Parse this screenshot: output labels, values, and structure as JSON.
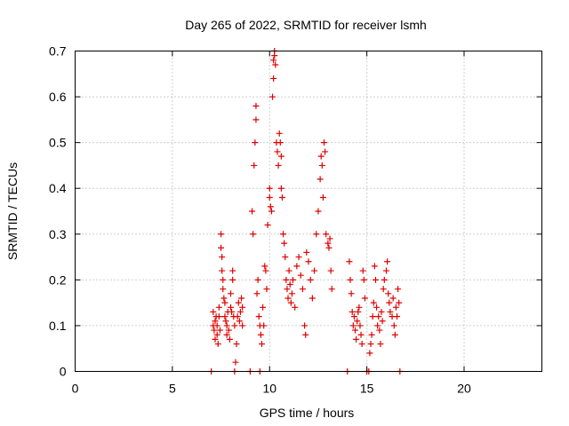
{
  "chart_data": {
    "type": "scatter",
    "title": "Day 265 of 2022, SRMTID for receiver lsmh",
    "xlabel": "GPS time / hours",
    "ylabel": "SRMTID / TECUs",
    "xlim": [
      0,
      24
    ],
    "ylim": [
      0,
      0.7
    ],
    "xticks": [
      0,
      5,
      10,
      15,
      20
    ],
    "yticks": [
      0,
      0.1,
      0.2,
      0.3,
      0.4,
      0.5,
      0.6,
      0.7
    ],
    "x_tick_labels": [
      "0",
      "5",
      "10",
      "15",
      "20"
    ],
    "y_tick_labels": [
      "0",
      "0.1",
      "0.2",
      "0.3",
      "0.4",
      "0.5",
      "0.6",
      "0.7"
    ],
    "grid": true,
    "marker": "+",
    "series": [
      {
        "name": "SRMTID",
        "color": "#e00000",
        "points": [
          [
            7.0,
            0.0
          ],
          [
            7.1,
            0.13
          ],
          [
            7.1,
            0.1
          ],
          [
            7.15,
            0.09
          ],
          [
            7.2,
            0.11
          ],
          [
            7.2,
            0.07
          ],
          [
            7.25,
            0.12
          ],
          [
            7.3,
            0.08
          ],
          [
            7.3,
            0.1
          ],
          [
            7.35,
            0.06
          ],
          [
            7.4,
            0.14
          ],
          [
            7.4,
            0.12
          ],
          [
            7.45,
            0.09
          ],
          [
            7.5,
            0.3
          ],
          [
            7.5,
            0.27
          ],
          [
            7.55,
            0.25
          ],
          [
            7.55,
            0.22
          ],
          [
            7.6,
            0.2
          ],
          [
            7.6,
            0.18
          ],
          [
            7.65,
            0.16
          ],
          [
            7.7,
            0.15
          ],
          [
            7.7,
            0.12
          ],
          [
            7.75,
            0.11
          ],
          [
            7.8,
            0.1
          ],
          [
            7.8,
            0.08
          ],
          [
            7.85,
            0.13
          ],
          [
            7.9,
            0.09
          ],
          [
            7.95,
            0.07
          ],
          [
            8.0,
            0.17
          ],
          [
            8.0,
            0.14
          ],
          [
            8.05,
            0.13
          ],
          [
            8.1,
            0.22
          ],
          [
            8.1,
            0.2
          ],
          [
            8.15,
            0.12
          ],
          [
            8.2,
            0.1
          ],
          [
            8.2,
            0.0
          ],
          [
            8.25,
            0.02
          ],
          [
            8.3,
            0.06
          ],
          [
            8.35,
            0.12
          ],
          [
            8.4,
            0.15
          ],
          [
            8.45,
            0.11
          ],
          [
            8.5,
            0.13
          ],
          [
            8.55,
            0.16
          ],
          [
            8.6,
            0.1
          ],
          [
            8.6,
            0.14
          ],
          [
            9.0,
            0.0
          ],
          [
            9.1,
            0.35
          ],
          [
            9.15,
            0.3
          ],
          [
            9.2,
            0.45
          ],
          [
            9.25,
            0.5
          ],
          [
            9.3,
            0.55
          ],
          [
            9.3,
            0.58
          ],
          [
            9.35,
            0.17
          ],
          [
            9.4,
            0.2
          ],
          [
            9.45,
            0.12
          ],
          [
            9.5,
            0.1
          ],
          [
            9.5,
            0.0
          ],
          [
            9.55,
            0.08
          ],
          [
            9.6,
            0.06
          ],
          [
            9.65,
            0.14
          ],
          [
            9.7,
            0.1
          ],
          [
            9.75,
            0.23
          ],
          [
            9.8,
            0.22
          ],
          [
            9.85,
            0.18
          ],
          [
            9.9,
            0.32
          ],
          [
            10.0,
            0.38
          ],
          [
            10.0,
            0.4
          ],
          [
            10.05,
            0.36
          ],
          [
            10.1,
            0.35
          ],
          [
            10.15,
            0.6
          ],
          [
            10.2,
            0.64
          ],
          [
            10.2,
            0.68
          ],
          [
            10.25,
            0.69
          ],
          [
            10.25,
            0.7
          ],
          [
            10.3,
            0.67
          ],
          [
            10.35,
            0.5
          ],
          [
            10.4,
            0.48
          ],
          [
            10.45,
            0.45
          ],
          [
            10.5,
            0.52
          ],
          [
            10.55,
            0.5
          ],
          [
            10.6,
            0.47
          ],
          [
            10.6,
            0.4
          ],
          [
            10.65,
            0.38
          ],
          [
            10.7,
            0.3
          ],
          [
            10.75,
            0.28
          ],
          [
            10.8,
            0.25
          ],
          [
            10.85,
            0.2
          ],
          [
            10.9,
            0.18
          ],
          [
            10.95,
            0.16
          ],
          [
            11.0,
            0.22
          ],
          [
            11.05,
            0.19
          ],
          [
            11.1,
            0.15
          ],
          [
            11.15,
            0.17
          ],
          [
            11.2,
            0.2
          ],
          [
            11.3,
            0.14
          ],
          [
            11.4,
            0.23
          ],
          [
            11.5,
            0.25
          ],
          [
            11.6,
            0.21
          ],
          [
            11.7,
            0.18
          ],
          [
            11.8,
            0.1
          ],
          [
            11.85,
            0.08
          ],
          [
            11.9,
            0.26
          ],
          [
            12.0,
            0.24
          ],
          [
            12.1,
            0.2
          ],
          [
            12.2,
            0.16
          ],
          [
            12.3,
            0.22
          ],
          [
            12.4,
            0.3
          ],
          [
            12.5,
            0.35
          ],
          [
            12.6,
            0.42
          ],
          [
            12.65,
            0.47
          ],
          [
            12.7,
            0.45
          ],
          [
            12.75,
            0.38
          ],
          [
            12.8,
            0.5
          ],
          [
            12.85,
            0.48
          ],
          [
            12.9,
            0.3
          ],
          [
            13.0,
            0.28
          ],
          [
            13.05,
            0.27
          ],
          [
            13.1,
            0.29
          ],
          [
            13.15,
            0.22
          ],
          [
            13.2,
            0.18
          ],
          [
            14.0,
            0.0
          ],
          [
            14.1,
            0.24
          ],
          [
            14.15,
            0.2
          ],
          [
            14.2,
            0.17
          ],
          [
            14.25,
            0.13
          ],
          [
            14.3,
            0.1
          ],
          [
            14.35,
            0.12
          ],
          [
            14.4,
            0.09
          ],
          [
            14.45,
            0.07
          ],
          [
            14.5,
            0.11
          ],
          [
            14.55,
            0.13
          ],
          [
            14.6,
            0.14
          ],
          [
            14.65,
            0.1
          ],
          [
            14.7,
            0.08
          ],
          [
            14.75,
            0.06
          ],
          [
            14.8,
            0.22
          ],
          [
            14.85,
            0.2
          ],
          [
            14.9,
            0.16
          ],
          [
            15.0,
            0.0
          ],
          [
            15.1,
            0.0
          ],
          [
            15.15,
            0.04
          ],
          [
            15.2,
            0.06
          ],
          [
            15.25,
            0.08
          ],
          [
            15.3,
            0.12
          ],
          [
            15.35,
            0.15
          ],
          [
            15.4,
            0.23
          ],
          [
            15.45,
            0.2
          ],
          [
            15.5,
            0.14
          ],
          [
            15.55,
            0.1
          ],
          [
            15.6,
            0.12
          ],
          [
            15.65,
            0.09
          ],
          [
            15.7,
            0.06
          ],
          [
            15.75,
            0.13
          ],
          [
            15.8,
            0.11
          ],
          [
            15.85,
            0.18
          ],
          [
            15.9,
            0.2
          ],
          [
            16.0,
            0.22
          ],
          [
            16.05,
            0.24
          ],
          [
            16.1,
            0.17
          ],
          [
            16.15,
            0.15
          ],
          [
            16.2,
            0.13
          ],
          [
            16.3,
            0.12
          ],
          [
            16.35,
            0.16
          ],
          [
            16.4,
            0.1
          ],
          [
            16.45,
            0.08
          ],
          [
            16.5,
            0.14
          ],
          [
            16.55,
            0.12
          ],
          [
            16.6,
            0.18
          ],
          [
            16.65,
            0.15
          ],
          [
            16.7,
            0.0
          ]
        ]
      }
    ]
  }
}
